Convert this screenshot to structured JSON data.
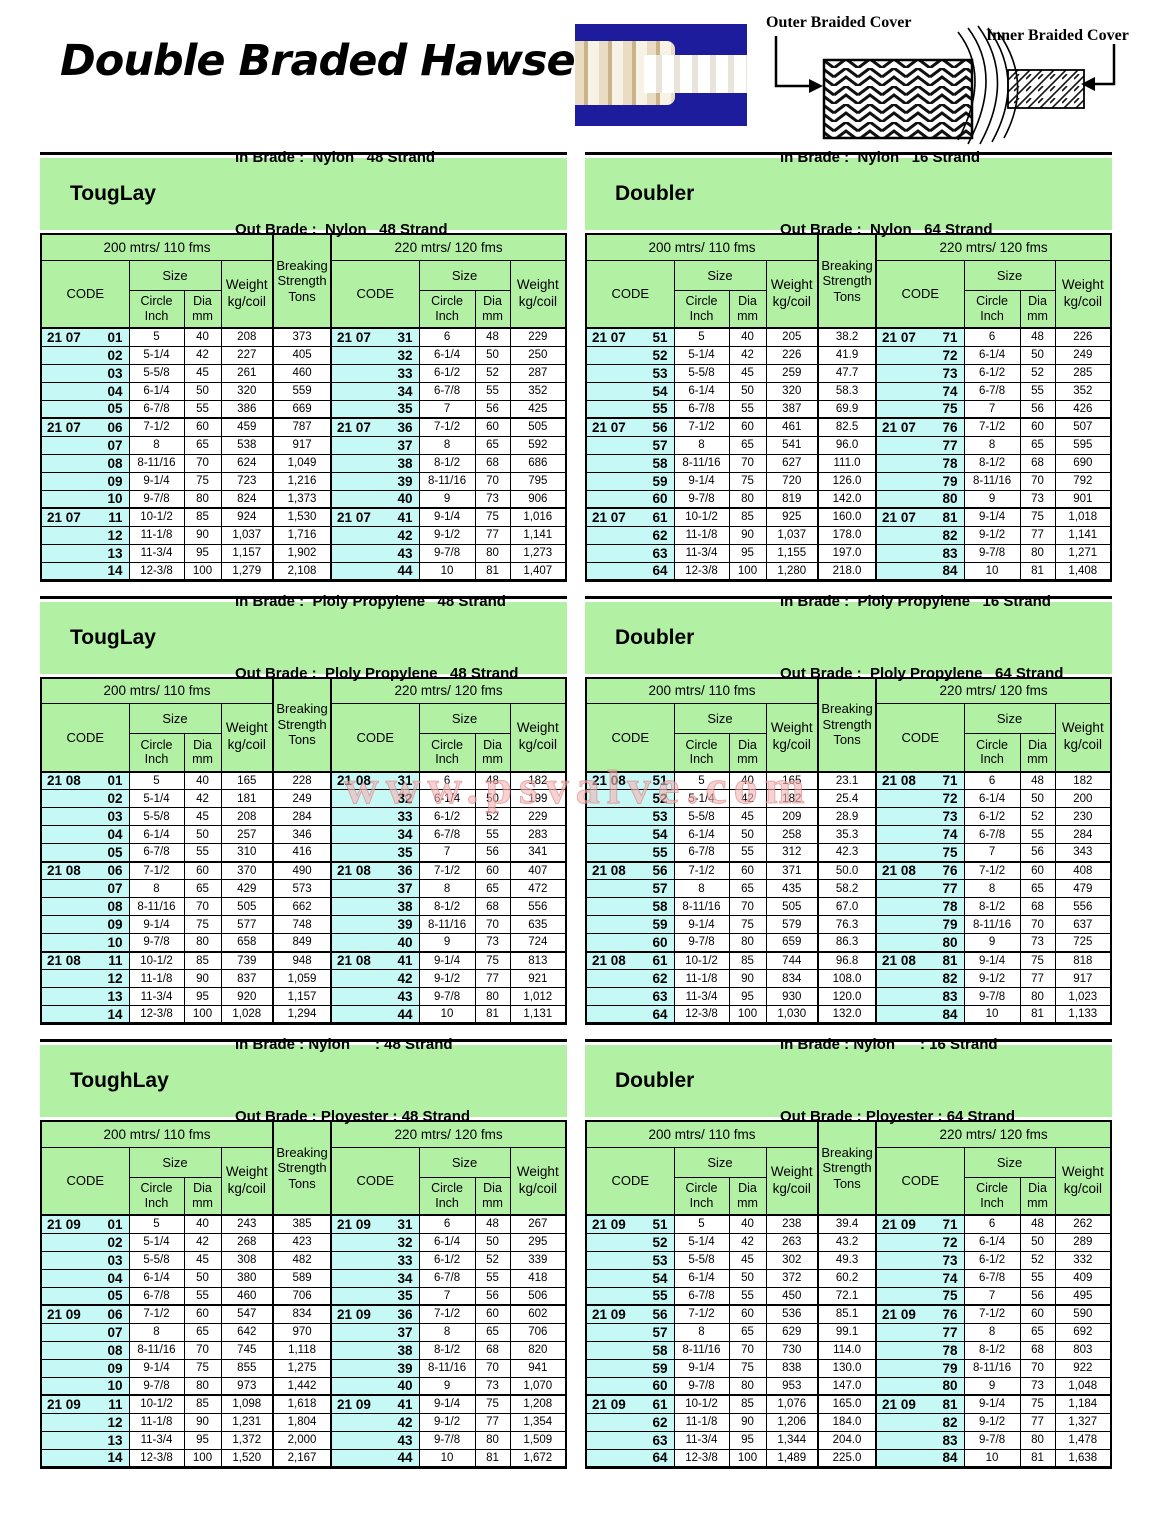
{
  "page_title": "Double Braded Hawser",
  "watermark": "www.psvalve.com",
  "diagram": {
    "outer_label": "Outer Braided Cover",
    "inner_label": "Inner Braided Cover"
  },
  "colors": {
    "header_green": "#b2f0a4",
    "code_cyan": "#c6f8f6",
    "photo_blue": "#1c1c9c",
    "watermark_pink": "#f2b7b7"
  },
  "columns": {
    "span200": "200 mtrs/ 110 fms",
    "span220": "220 mtrs/ 120 fms",
    "code": "CODE",
    "size": "Size",
    "circle": [
      "Circle",
      "Inch"
    ],
    "dia": [
      "Dia",
      "mm"
    ],
    "weight": [
      "Weight",
      "kg/coil"
    ],
    "breaking": [
      "Breaking",
      "Strength",
      "Tons"
    ]
  },
  "tables": [
    {
      "name": "TougLay",
      "in_line": "In Brade :  Nylon   48 Strand",
      "out_line": "Out Brade :  Nylon   48 Strand",
      "left_rows": [
        [
          "21 07 01",
          "5",
          "40",
          "208",
          "373"
        ],
        [
          "02",
          "5-1/4",
          "42",
          "227",
          "405"
        ],
        [
          "03",
          "5-5/8",
          "45",
          "261",
          "460"
        ],
        [
          "04",
          "6-1/4",
          "50",
          "320",
          "559"
        ],
        [
          "05",
          "6-7/8",
          "55",
          "386",
          "669"
        ],
        [
          "21 07 06",
          "7-1/2",
          "60",
          "459",
          "787"
        ],
        [
          "07",
          "8",
          "65",
          "538",
          "917"
        ],
        [
          "08",
          "8-11/16",
          "70",
          "624",
          "1,049"
        ],
        [
          "09",
          "9-1/4",
          "75",
          "723",
          "1,216"
        ],
        [
          "10",
          "9-7/8",
          "80",
          "824",
          "1,373"
        ],
        [
          "21 07 11",
          "10-1/2",
          "85",
          "924",
          "1,530"
        ],
        [
          "12",
          "11-1/8",
          "90",
          "1,037",
          "1,716"
        ],
        [
          "13",
          "11-3/4",
          "95",
          "1,157",
          "1,902"
        ],
        [
          "14",
          "12-3/8",
          "100",
          "1,279",
          "2,108"
        ]
      ],
      "right_rows": [
        [
          "21 07 31",
          "6",
          "48",
          "229"
        ],
        [
          "32",
          "6-1/4",
          "50",
          "250"
        ],
        [
          "33",
          "6-1/2",
          "52",
          "287"
        ],
        [
          "34",
          "6-7/8",
          "55",
          "352"
        ],
        [
          "35",
          "7",
          "56",
          "425"
        ],
        [
          "21 07 36",
          "7-1/2",
          "60",
          "505"
        ],
        [
          "37",
          "8",
          "65",
          "592"
        ],
        [
          "38",
          "8-1/2",
          "68",
          "686"
        ],
        [
          "39",
          "8-11/16",
          "70",
          "795"
        ],
        [
          "40",
          "9",
          "73",
          "906"
        ],
        [
          "21 07 41",
          "9-1/4",
          "75",
          "1,016"
        ],
        [
          "42",
          "9-1/2",
          "77",
          "1,141"
        ],
        [
          "43",
          "9-7/8",
          "80",
          "1,273"
        ],
        [
          "44",
          "10",
          "81",
          "1,407"
        ]
      ]
    },
    {
      "name": "Doubler",
      "in_line": "In Brade :  Nylon   16 Strand",
      "out_line": "Out Brade :  Nylon   64 Strand",
      "left_rows": [
        [
          "21 07 51",
          "5",
          "40",
          "205",
          "38.2"
        ],
        [
          "52",
          "5-1/4",
          "42",
          "226",
          "41.9"
        ],
        [
          "53",
          "5-5/8",
          "45",
          "259",
          "47.7"
        ],
        [
          "54",
          "6-1/4",
          "50",
          "320",
          "58.3"
        ],
        [
          "55",
          "6-7/8",
          "55",
          "387",
          "69.9"
        ],
        [
          "21 07 56",
          "7-1/2",
          "60",
          "461",
          "82.5"
        ],
        [
          "57",
          "8",
          "65",
          "541",
          "96.0"
        ],
        [
          "58",
          "8-11/16",
          "70",
          "627",
          "111.0"
        ],
        [
          "59",
          "9-1/4",
          "75",
          "720",
          "126.0"
        ],
        [
          "60",
          "9-7/8",
          "80",
          "819",
          "142.0"
        ],
        [
          "21 07 61",
          "10-1/2",
          "85",
          "925",
          "160.0"
        ],
        [
          "62",
          "11-1/8",
          "90",
          "1,037",
          "178.0"
        ],
        [
          "63",
          "11-3/4",
          "95",
          "1,155",
          "197.0"
        ],
        [
          "64",
          "12-3/8",
          "100",
          "1,280",
          "218.0"
        ]
      ],
      "right_rows": [
        [
          "21 07 71",
          "6",
          "48",
          "226"
        ],
        [
          "72",
          "6-1/4",
          "50",
          "249"
        ],
        [
          "73",
          "6-1/2",
          "52",
          "285"
        ],
        [
          "74",
          "6-7/8",
          "55",
          "352"
        ],
        [
          "75",
          "7",
          "56",
          "426"
        ],
        [
          "21 07 76",
          "7-1/2",
          "60",
          "507"
        ],
        [
          "77",
          "8",
          "65",
          "595"
        ],
        [
          "78",
          "8-1/2",
          "68",
          "690"
        ],
        [
          "79",
          "8-11/16",
          "70",
          "792"
        ],
        [
          "80",
          "9",
          "73",
          "901"
        ],
        [
          "21 07 81",
          "9-1/4",
          "75",
          "1,018"
        ],
        [
          "82",
          "9-1/2",
          "77",
          "1,141"
        ],
        [
          "83",
          "9-7/8",
          "80",
          "1,271"
        ],
        [
          "84",
          "10",
          "81",
          "1,408"
        ]
      ]
    },
    {
      "name": "TougLay",
      "in_line": "In Brade :  Ploly Propylene   48 Strand",
      "out_line": "Out Brade :  Ploly Propylene   48 Strand",
      "left_rows": [
        [
          "21 08 01",
          "5",
          "40",
          "165",
          "228"
        ],
        [
          "02",
          "5-1/4",
          "42",
          "181",
          "249"
        ],
        [
          "03",
          "5-5/8",
          "45",
          "208",
          "284"
        ],
        [
          "04",
          "6-1/4",
          "50",
          "257",
          "346"
        ],
        [
          "05",
          "6-7/8",
          "55",
          "310",
          "416"
        ],
        [
          "21 08 06",
          "7-1/2",
          "60",
          "370",
          "490"
        ],
        [
          "07",
          "8",
          "65",
          "429",
          "573"
        ],
        [
          "08",
          "8-11/16",
          "70",
          "505",
          "662"
        ],
        [
          "09",
          "9-1/4",
          "75",
          "577",
          "748"
        ],
        [
          "10",
          "9-7/8",
          "80",
          "658",
          "849"
        ],
        [
          "21 08 11",
          "10-1/2",
          "85",
          "739",
          "948"
        ],
        [
          "12",
          "11-1/8",
          "90",
          "837",
          "1,059"
        ],
        [
          "13",
          "11-3/4",
          "95",
          "920",
          "1,157"
        ],
        [
          "14",
          "12-3/8",
          "100",
          "1,028",
          "1,294"
        ]
      ],
      "right_rows": [
        [
          "21 08 31",
          "6",
          "48",
          "182"
        ],
        [
          "32",
          "6-1/4",
          "50",
          "199"
        ],
        [
          "33",
          "6-1/2",
          "52",
          "229"
        ],
        [
          "34",
          "6-7/8",
          "55",
          "283"
        ],
        [
          "35",
          "7",
          "56",
          "341"
        ],
        [
          "21 08 36",
          "7-1/2",
          "60",
          "407"
        ],
        [
          "37",
          "8",
          "65",
          "472"
        ],
        [
          "38",
          "8-1/2",
          "68",
          "556"
        ],
        [
          "39",
          "8-11/16",
          "70",
          "635"
        ],
        [
          "40",
          "9",
          "73",
          "724"
        ],
        [
          "21 08 41",
          "9-1/4",
          "75",
          "813"
        ],
        [
          "42",
          "9-1/2",
          "77",
          "921"
        ],
        [
          "43",
          "9-7/8",
          "80",
          "1,012"
        ],
        [
          "44",
          "10",
          "81",
          "1,131"
        ]
      ]
    },
    {
      "name": "Doubler",
      "in_line": "In Brade :  Ploly Propylene   16 Strand",
      "out_line": "Out Brade :  Ploly Propylene   64 Strand",
      "left_rows": [
        [
          "21 08 51",
          "5",
          "40",
          "165",
          "23.1"
        ],
        [
          "52",
          "5-1/4",
          "42",
          "182",
          "25.4"
        ],
        [
          "53",
          "5-5/8",
          "45",
          "209",
          "28.9"
        ],
        [
          "54",
          "6-1/4",
          "50",
          "258",
          "35.3"
        ],
        [
          "55",
          "6-7/8",
          "55",
          "312",
          "42.3"
        ],
        [
          "21 08 56",
          "7-1/2",
          "60",
          "371",
          "50.0"
        ],
        [
          "57",
          "8",
          "65",
          "435",
          "58.2"
        ],
        [
          "58",
          "8-11/16",
          "70",
          "505",
          "67.0"
        ],
        [
          "59",
          "9-1/4",
          "75",
          "579",
          "76.3"
        ],
        [
          "60",
          "9-7/8",
          "80",
          "659",
          "86.3"
        ],
        [
          "21 08 61",
          "10-1/2",
          "85",
          "744",
          "96.8"
        ],
        [
          "62",
          "11-1/8",
          "90",
          "834",
          "108.0"
        ],
        [
          "63",
          "11-3/4",
          "95",
          "930",
          "120.0"
        ],
        [
          "64",
          "12-3/8",
          "100",
          "1,030",
          "132.0"
        ]
      ],
      "right_rows": [
        [
          "21 08 71",
          "6",
          "48",
          "182"
        ],
        [
          "72",
          "6-1/4",
          "50",
          "200"
        ],
        [
          "73",
          "6-1/2",
          "52",
          "230"
        ],
        [
          "74",
          "6-7/8",
          "55",
          "284"
        ],
        [
          "75",
          "7",
          "56",
          "343"
        ],
        [
          "21 08 76",
          "7-1/2",
          "60",
          "408"
        ],
        [
          "77",
          "8",
          "65",
          "479"
        ],
        [
          "78",
          "8-1/2",
          "68",
          "556"
        ],
        [
          "79",
          "8-11/16",
          "70",
          "637"
        ],
        [
          "80",
          "9",
          "73",
          "725"
        ],
        [
          "21 08 81",
          "9-1/4",
          "75",
          "818"
        ],
        [
          "82",
          "9-1/2",
          "77",
          "917"
        ],
        [
          "83",
          "9-7/8",
          "80",
          "1,023"
        ],
        [
          "84",
          "10",
          "81",
          "1,133"
        ]
      ]
    },
    {
      "name": "ToughLay",
      "in_line": "In Brade : Nylon      : 48 Strand",
      "out_line": "Out Brade : Ployester : 48 Strand",
      "left_rows": [
        [
          "21 09 01",
          "5",
          "40",
          "243",
          "385"
        ],
        [
          "02",
          "5-1/4",
          "42",
          "268",
          "423"
        ],
        [
          "03",
          "5-5/8",
          "45",
          "308",
          "482"
        ],
        [
          "04",
          "6-1/4",
          "50",
          "380",
          "589"
        ],
        [
          "05",
          "6-7/8",
          "55",
          "460",
          "706"
        ],
        [
          "21 09 06",
          "7-1/2",
          "60",
          "547",
          "834"
        ],
        [
          "07",
          "8",
          "65",
          "642",
          "970"
        ],
        [
          "08",
          "8-11/16",
          "70",
          "745",
          "1,118"
        ],
        [
          "09",
          "9-1/4",
          "75",
          "855",
          "1,275"
        ],
        [
          "10",
          "9-7/8",
          "80",
          "973",
          "1,442"
        ],
        [
          "21 09 11",
          "10-1/2",
          "85",
          "1,098",
          "1,618"
        ],
        [
          "12",
          "11-1/8",
          "90",
          "1,231",
          "1,804"
        ],
        [
          "13",
          "11-3/4",
          "95",
          "1,372",
          "2,000"
        ],
        [
          "14",
          "12-3/8",
          "100",
          "1,520",
          "2,167"
        ]
      ],
      "right_rows": [
        [
          "21 09 31",
          "6",
          "48",
          "267"
        ],
        [
          "32",
          "6-1/4",
          "50",
          "295"
        ],
        [
          "33",
          "6-1/2",
          "52",
          "339"
        ],
        [
          "34",
          "6-7/8",
          "55",
          "418"
        ],
        [
          "35",
          "7",
          "56",
          "506"
        ],
        [
          "21 09 36",
          "7-1/2",
          "60",
          "602"
        ],
        [
          "37",
          "8",
          "65",
          "706"
        ],
        [
          "38",
          "8-1/2",
          "68",
          "820"
        ],
        [
          "39",
          "8-11/16",
          "70",
          "941"
        ],
        [
          "40",
          "9",
          "73",
          "1,070"
        ],
        [
          "21 09 41",
          "9-1/4",
          "75",
          "1,208"
        ],
        [
          "42",
          "9-1/2",
          "77",
          "1,354"
        ],
        [
          "43",
          "9-7/8",
          "80",
          "1,509"
        ],
        [
          "44",
          "10",
          "81",
          "1,672"
        ]
      ]
    },
    {
      "name": "Doubler",
      "in_line": "In Brade : Nylon      : 16 Strand",
      "out_line": "Out Brade : Ployester : 64 Strand",
      "left_rows": [
        [
          "21 09 51",
          "5",
          "40",
          "238",
          "39.4"
        ],
        [
          "52",
          "5-1/4",
          "42",
          "263",
          "43.2"
        ],
        [
          "53",
          "5-5/8",
          "45",
          "302",
          "49.3"
        ],
        [
          "54",
          "6-1/4",
          "50",
          "372",
          "60.2"
        ],
        [
          "55",
          "6-7/8",
          "55",
          "450",
          "72.1"
        ],
        [
          "21 09 56",
          "7-1/2",
          "60",
          "536",
          "85.1"
        ],
        [
          "57",
          "8",
          "65",
          "629",
          "99.1"
        ],
        [
          "58",
          "8-11/16",
          "70",
          "730",
          "114.0"
        ],
        [
          "59",
          "9-1/4",
          "75",
          "838",
          "130.0"
        ],
        [
          "60",
          "9-7/8",
          "80",
          "953",
          "147.0"
        ],
        [
          "21 09 61",
          "10-1/2",
          "85",
          "1,076",
          "165.0"
        ],
        [
          "62",
          "11-1/8",
          "90",
          "1,206",
          "184.0"
        ],
        [
          "63",
          "11-3/4",
          "95",
          "1,344",
          "204.0"
        ],
        [
          "64",
          "12-3/8",
          "100",
          "1,489",
          "225.0"
        ]
      ],
      "right_rows": [
        [
          "21 09 71",
          "6",
          "48",
          "262"
        ],
        [
          "72",
          "6-1/4",
          "50",
          "289"
        ],
        [
          "73",
          "6-1/2",
          "52",
          "332"
        ],
        [
          "74",
          "6-7/8",
          "55",
          "409"
        ],
        [
          "75",
          "7",
          "56",
          "495"
        ],
        [
          "21 09 76",
          "7-1/2",
          "60",
          "590"
        ],
        [
          "77",
          "8",
          "65",
          "692"
        ],
        [
          "78",
          "8-1/2",
          "68",
          "803"
        ],
        [
          "79",
          "8-11/16",
          "70",
          "922"
        ],
        [
          "80",
          "9",
          "73",
          "1,048"
        ],
        [
          "21 09 81",
          "9-1/4",
          "75",
          "1,184"
        ],
        [
          "82",
          "9-1/2",
          "77",
          "1,327"
        ],
        [
          "83",
          "9-7/8",
          "80",
          "1,478"
        ],
        [
          "84",
          "10",
          "81",
          "1,638"
        ]
      ]
    }
  ]
}
